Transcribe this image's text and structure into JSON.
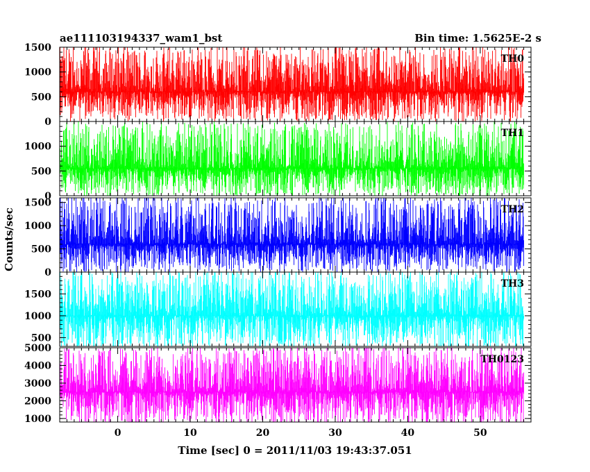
{
  "chart_data": {
    "type": "line",
    "title_left": "ae111103194337_wam1_bst",
    "title_right": "Bin time: 1.5625E-2 s",
    "xlabel": "Time [sec] 0 = 2011/11/03 19:43:37.051",
    "ylabel": "Counts/sec",
    "xlim": [
      -8,
      57
    ],
    "x_range_data": [
      -8,
      56
    ],
    "xticks": [
      0,
      10,
      20,
      30,
      40,
      50
    ],
    "x_tick_labels": [
      "0",
      "10",
      "20",
      "30",
      "40",
      "50"
    ],
    "panels": [
      {
        "name": "TH0",
        "color": "#ff0000",
        "ylim": [
          0,
          1500
        ],
        "yticks": [
          0,
          500,
          1000,
          1500
        ],
        "y_tick_labels": [
          "0",
          "500",
          "1000",
          "1500"
        ],
        "mean": 600,
        "low": 50,
        "high": 1500
      },
      {
        "name": "TH1",
        "color": "#00ff00",
        "ylim": [
          0,
          1500
        ],
        "yticks": [
          0,
          500,
          1000
        ],
        "y_tick_labels": [
          "0",
          "500",
          "1000"
        ],
        "mean": 550,
        "low": 30,
        "high": 1450
      },
      {
        "name": "TH2",
        "color": "#0000ff",
        "ylim": [
          0,
          1600
        ],
        "yticks": [
          0,
          500,
          1000,
          1500
        ],
        "y_tick_labels": [
          "0",
          "500",
          "1000",
          "1500"
        ],
        "mean": 600,
        "low": 50,
        "high": 1600
      },
      {
        "name": "TH3",
        "color": "#00ffff",
        "ylim": [
          300,
          2000
        ],
        "yticks": [
          500,
          1000,
          1500
        ],
        "y_tick_labels": [
          "500",
          "1000",
          "1500"
        ],
        "mean": 1000,
        "low": 300,
        "high": 2000
      },
      {
        "name": "TH0123",
        "color": "#ff00ff",
        "ylim": [
          800,
          5000
        ],
        "yticks": [
          1000,
          2000,
          3000,
          4000,
          5000
        ],
        "y_tick_labels": [
          "1000",
          "2000",
          "3000",
          "4000",
          "5000"
        ],
        "mean": 2500,
        "low": 800,
        "high": 5000
      }
    ],
    "grid": false,
    "legend": "panel labels at top-right"
  }
}
